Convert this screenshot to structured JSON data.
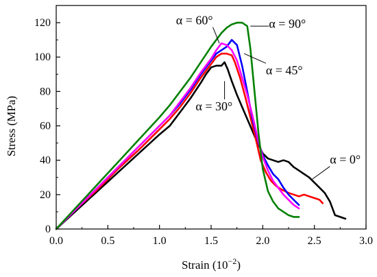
{
  "chart_data": {
    "type": "line",
    "title": "",
    "xlabel": "Strain (10",
    "xlabel_exp": "−2",
    "xlabel_close": ")",
    "ylabel": "Stress (MPa)",
    "xlim": [
      0.0,
      3.0
    ],
    "ylim": [
      0,
      130
    ],
    "grid": false,
    "x_ticks": [
      0.0,
      0.5,
      1.0,
      1.5,
      2.0,
      2.5,
      3.0
    ],
    "x_tick_labels": [
      "0.0",
      "0.5",
      "1.0",
      "1.5",
      "2.0",
      "2.5",
      "3.0"
    ],
    "y_ticks": [
      0,
      20,
      40,
      60,
      80,
      100,
      120
    ],
    "y_tick_labels": [
      "0",
      "20",
      "40",
      "60",
      "80",
      "100",
      "120"
    ],
    "series": [
      {
        "name": "α = 0°",
        "color": "#000000",
        "x": [
          0.0,
          0.2,
          0.4,
          0.6,
          0.8,
          1.0,
          1.1,
          1.2,
          1.3,
          1.4,
          1.45,
          1.5,
          1.55,
          1.6,
          1.63,
          1.66,
          1.7,
          1.75,
          1.8,
          1.85,
          1.9,
          1.95,
          2.0,
          2.05,
          2.1,
          2.15,
          2.2,
          2.25,
          2.3,
          2.35,
          2.4,
          2.45,
          2.5,
          2.55,
          2.6,
          2.65,
          2.7,
          2.75,
          2.8
        ],
        "y": [
          0,
          11,
          22,
          33,
          44,
          55,
          60,
          68,
          76,
          85,
          90,
          94,
          95,
          95,
          97,
          93,
          86,
          78,
          71,
          64,
          57,
          50,
          44,
          41,
          40,
          39,
          40,
          39,
          36,
          34,
          32,
          30,
          27,
          24,
          21,
          16,
          8,
          7,
          6
        ]
      },
      {
        "name": "α = 30°",
        "color": "#ff0000",
        "x": [
          0.0,
          0.2,
          0.4,
          0.6,
          0.8,
          1.0,
          1.1,
          1.2,
          1.3,
          1.4,
          1.5,
          1.55,
          1.6,
          1.65,
          1.7,
          1.73,
          1.78,
          1.83,
          1.88,
          1.93,
          1.98,
          2.03,
          2.08,
          2.13,
          2.18,
          2.25,
          2.3,
          2.35,
          2.4,
          2.45,
          2.5,
          2.55,
          2.58
        ],
        "y": [
          0,
          12,
          23,
          35,
          46,
          58,
          64,
          71,
          79,
          88,
          96,
          100,
          102,
          102,
          101,
          97,
          88,
          77,
          65,
          53,
          40,
          33,
          28,
          25,
          23,
          21,
          20,
          19,
          20,
          19,
          18,
          17,
          15
        ]
      },
      {
        "name": "α = 45°",
        "color": "#0000ff",
        "x": [
          0.0,
          0.2,
          0.4,
          0.6,
          0.8,
          1.0,
          1.1,
          1.2,
          1.3,
          1.4,
          1.5,
          1.55,
          1.6,
          1.65,
          1.7,
          1.75,
          1.8,
          1.85,
          1.9,
          1.95,
          2.0,
          2.05,
          2.1,
          2.15,
          2.2,
          2.25,
          2.3,
          2.35
        ],
        "y": [
          0,
          12,
          24,
          36,
          48,
          60,
          66,
          73,
          81,
          90,
          98,
          102,
          104,
          106,
          110,
          107,
          95,
          80,
          64,
          52,
          43,
          37,
          32,
          29,
          24,
          20,
          17,
          14
        ]
      },
      {
        "name": "α = 60°",
        "color": "#ff00ff",
        "x": [
          0.0,
          0.2,
          0.4,
          0.6,
          0.8,
          1.0,
          1.1,
          1.2,
          1.3,
          1.4,
          1.5,
          1.55,
          1.6,
          1.65,
          1.7,
          1.75,
          1.8,
          1.85,
          1.9,
          1.95,
          2.0,
          2.05,
          2.1,
          2.15,
          2.2,
          2.25,
          2.3,
          2.35
        ],
        "y": [
          0,
          12,
          24,
          36,
          48,
          60,
          66,
          74,
          82,
          91,
          99,
          104,
          108,
          107,
          104,
          98,
          88,
          78,
          66,
          53,
          42,
          34,
          28,
          24,
          20,
          17,
          14,
          12
        ]
      },
      {
        "name": "α = 90°",
        "color": "#008000",
        "x": [
          0.0,
          0.2,
          0.4,
          0.6,
          0.8,
          1.0,
          1.1,
          1.2,
          1.3,
          1.4,
          1.5,
          1.55,
          1.6,
          1.65,
          1.7,
          1.75,
          1.8,
          1.85,
          1.88,
          1.92,
          1.96,
          2.0,
          2.05,
          2.1,
          2.15,
          2.2,
          2.25,
          2.3,
          2.35
        ],
        "y": [
          0,
          13,
          26,
          39,
          52,
          65,
          72,
          80,
          88,
          97,
          106,
          110,
          114,
          117,
          119,
          120,
          120,
          118,
          105,
          80,
          55,
          35,
          22,
          16,
          12,
          10,
          8,
          7,
          7
        ]
      }
    ],
    "annotations": [
      {
        "text": "α = 90°",
        "series": "α = 90°",
        "text_x": 2.06,
        "text_y": 117,
        "point_x": 1.88,
        "point_y": 118
      },
      {
        "text": "α = 60°",
        "series": "α = 60°",
        "text_x": 1.16,
        "text_y": 119,
        "point_x": 1.58,
        "point_y": 108
      },
      {
        "text": "α = 45°",
        "series": "α = 45°",
        "text_x": 2.03,
        "text_y": 90,
        "point_x": 1.82,
        "point_y": 102
      },
      {
        "text": "α = 30°",
        "series": "α = 30°",
        "text_x": 1.35,
        "text_y": 69,
        "point_x": 1.63,
        "point_y": 86
      },
      {
        "text": "α = 0°",
        "series": "α = 0°",
        "text_x": 2.65,
        "text_y": 38,
        "point_x": 2.48,
        "point_y": 29
      }
    ]
  }
}
